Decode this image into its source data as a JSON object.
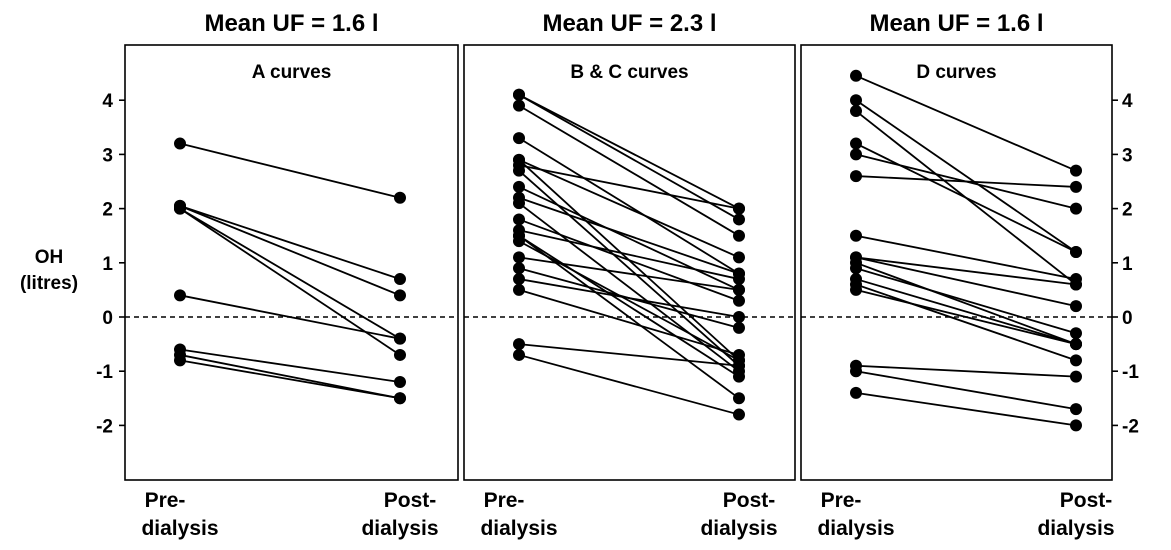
{
  "chart_data": [
    {
      "type": "line",
      "header": "Mean UF = 1.6 l",
      "title": "A curves",
      "categories": [
        "Pre-dialysis",
        "Post-dialysis"
      ],
      "ylabel": "OH (litres)",
      "ylim": [
        -3,
        5
      ],
      "yticks": [
        -2,
        -1,
        0,
        1,
        2,
        3,
        4
      ],
      "reference_line": 0,
      "series": [
        {
          "values": [
            3.2,
            2.2
          ]
        },
        {
          "values": [
            2.05,
            0.7
          ]
        },
        {
          "values": [
            2.05,
            0.4
          ]
        },
        {
          "values": [
            2.0,
            -0.7
          ]
        },
        {
          "values": [
            2.0,
            -0.4
          ]
        },
        {
          "values": [
            0.4,
            -0.4
          ]
        },
        {
          "values": [
            -0.6,
            -1.2
          ]
        },
        {
          "values": [
            -0.7,
            -1.5
          ]
        },
        {
          "values": [
            -0.8,
            -1.5
          ]
        }
      ]
    },
    {
      "type": "line",
      "header": "Mean UF = 2.3 l",
      "title": "B & C curves",
      "categories": [
        "Pre-dialysis",
        "Post-dialysis"
      ],
      "ylim": [
        -3,
        5
      ],
      "reference_line": 0,
      "series": [
        {
          "values": [
            4.1,
            2.0
          ]
        },
        {
          "values": [
            4.1,
            1.8
          ]
        },
        {
          "values": [
            3.9,
            1.5
          ]
        },
        {
          "values": [
            3.3,
            0.8
          ]
        },
        {
          "values": [
            2.9,
            1.1
          ]
        },
        {
          "values": [
            2.9,
            -0.8
          ]
        },
        {
          "values": [
            2.8,
            2.0
          ]
        },
        {
          "values": [
            2.7,
            -0.9
          ]
        },
        {
          "values": [
            2.4,
            0.5
          ]
        },
        {
          "values": [
            2.2,
            0.8
          ]
        },
        {
          "values": [
            2.1,
            -1.0
          ]
        },
        {
          "values": [
            1.8,
            0.3
          ]
        },
        {
          "values": [
            1.6,
            0.7
          ]
        },
        {
          "values": [
            1.5,
            -1.1
          ]
        },
        {
          "values": [
            1.5,
            -1.5
          ]
        },
        {
          "values": [
            1.4,
            -0.8
          ]
        },
        {
          "values": [
            1.1,
            0.5
          ]
        },
        {
          "values": [
            0.9,
            -0.2
          ]
        },
        {
          "values": [
            0.7,
            0.0
          ]
        },
        {
          "values": [
            0.5,
            -0.7
          ]
        },
        {
          "values": [
            -0.5,
            -0.9
          ]
        },
        {
          "values": [
            -0.7,
            -1.8
          ]
        }
      ]
    },
    {
      "type": "line",
      "header": "Mean UF = 1.6 l",
      "title": "D curves",
      "categories": [
        "Pre-dialysis",
        "Post-dialysis"
      ],
      "ylim": [
        -3,
        5
      ],
      "yticks": [
        -2,
        -1,
        0,
        1,
        2,
        3,
        4
      ],
      "reference_line": 0,
      "series": [
        {
          "values": [
            4.45,
            2.7
          ]
        },
        {
          "values": [
            4.0,
            1.2
          ]
        },
        {
          "values": [
            3.8,
            0.6
          ]
        },
        {
          "values": [
            3.2,
            1.2
          ]
        },
        {
          "values": [
            3.0,
            2.0
          ]
        },
        {
          "values": [
            2.6,
            2.4
          ]
        },
        {
          "values": [
            1.5,
            0.7
          ]
        },
        {
          "values": [
            1.1,
            0.6
          ]
        },
        {
          "values": [
            1.0,
            -0.5
          ]
        },
        {
          "values": [
            1.1,
            0.2
          ]
        },
        {
          "values": [
            0.9,
            -0.3
          ]
        },
        {
          "values": [
            0.7,
            -0.5
          ]
        },
        {
          "values": [
            0.6,
            -0.8
          ]
        },
        {
          "values": [
            0.5,
            -0.5
          ]
        },
        {
          "values": [
            -0.9,
            -1.1
          ]
        },
        {
          "values": [
            -1.0,
            -1.7
          ]
        },
        {
          "values": [
            -1.4,
            -2.0
          ]
        }
      ]
    }
  ],
  "figure": {
    "ylabel_lines": [
      "OH",
      "(litres)"
    ],
    "category_lines": [
      [
        "Pre-",
        "dialysis"
      ],
      [
        "Post-",
        "dialysis"
      ]
    ],
    "ytick_labels": [
      "-2",
      "-1",
      "0",
      "1",
      "2",
      "3",
      "4"
    ]
  }
}
